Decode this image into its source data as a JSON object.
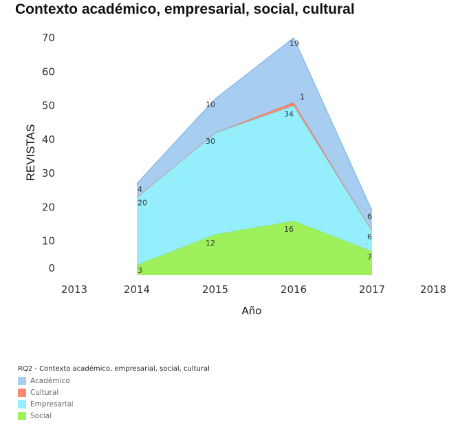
{
  "chart_data": {
    "type": "area",
    "stacked": true,
    "title": "Contexto académico, empresarial, social, cultural",
    "xlabel": "Año",
    "ylabel": "REVISTAS",
    "x": [
      2014,
      2015,
      2016,
      2017
    ],
    "x_ticks": [
      "2013",
      "2014",
      "2015",
      "2016",
      "2017",
      "2018"
    ],
    "xlim": [
      2013,
      2018
    ],
    "y_ticks": [
      "0",
      "10",
      "20",
      "30",
      "40",
      "50",
      "60",
      "70"
    ],
    "ylim": [
      0,
      70
    ],
    "grid": false,
    "series": [
      {
        "name": "Social",
        "color": "#9ef15a",
        "line": "#8fe04e",
        "values": [
          3,
          12,
          16,
          7
        ]
      },
      {
        "name": "Empresarial",
        "color": "#94eefc",
        "line": "#5fd2f0",
        "values": [
          20,
          30,
          34,
          6
        ]
      },
      {
        "name": "Cultural",
        "color": "#f58a6e",
        "line": "#e57a5e",
        "values": [
          0,
          0,
          1,
          0
        ]
      },
      {
        "name": "Académico",
        "color": "#a7cdf0",
        "line": "#7fb6ea",
        "values": [
          4,
          10,
          19,
          6
        ]
      }
    ],
    "data_labels": [
      {
        "series": "Social",
        "labels": [
          "3",
          "12",
          "16",
          "7"
        ]
      },
      {
        "series": "Empresarial",
        "labels": [
          "20",
          "30",
          "34",
          "6"
        ]
      },
      {
        "series": "Cultural",
        "labels": [
          "",
          "",
          "1",
          ""
        ]
      },
      {
        "series": "Académico",
        "labels": [
          "4",
          "10",
          "19",
          "6"
        ]
      }
    ],
    "legend": {
      "title": "RQ2 - Contexto académico, empresarial, social, cultural",
      "position": "bottom-left",
      "entries": [
        {
          "label": "Académico",
          "color": "#a7cdf0"
        },
        {
          "label": "Cultural",
          "color": "#f58a6e"
        },
        {
          "label": "Empresarial",
          "color": "#94eefc"
        },
        {
          "label": "Social",
          "color": "#9ef15a"
        }
      ]
    }
  }
}
